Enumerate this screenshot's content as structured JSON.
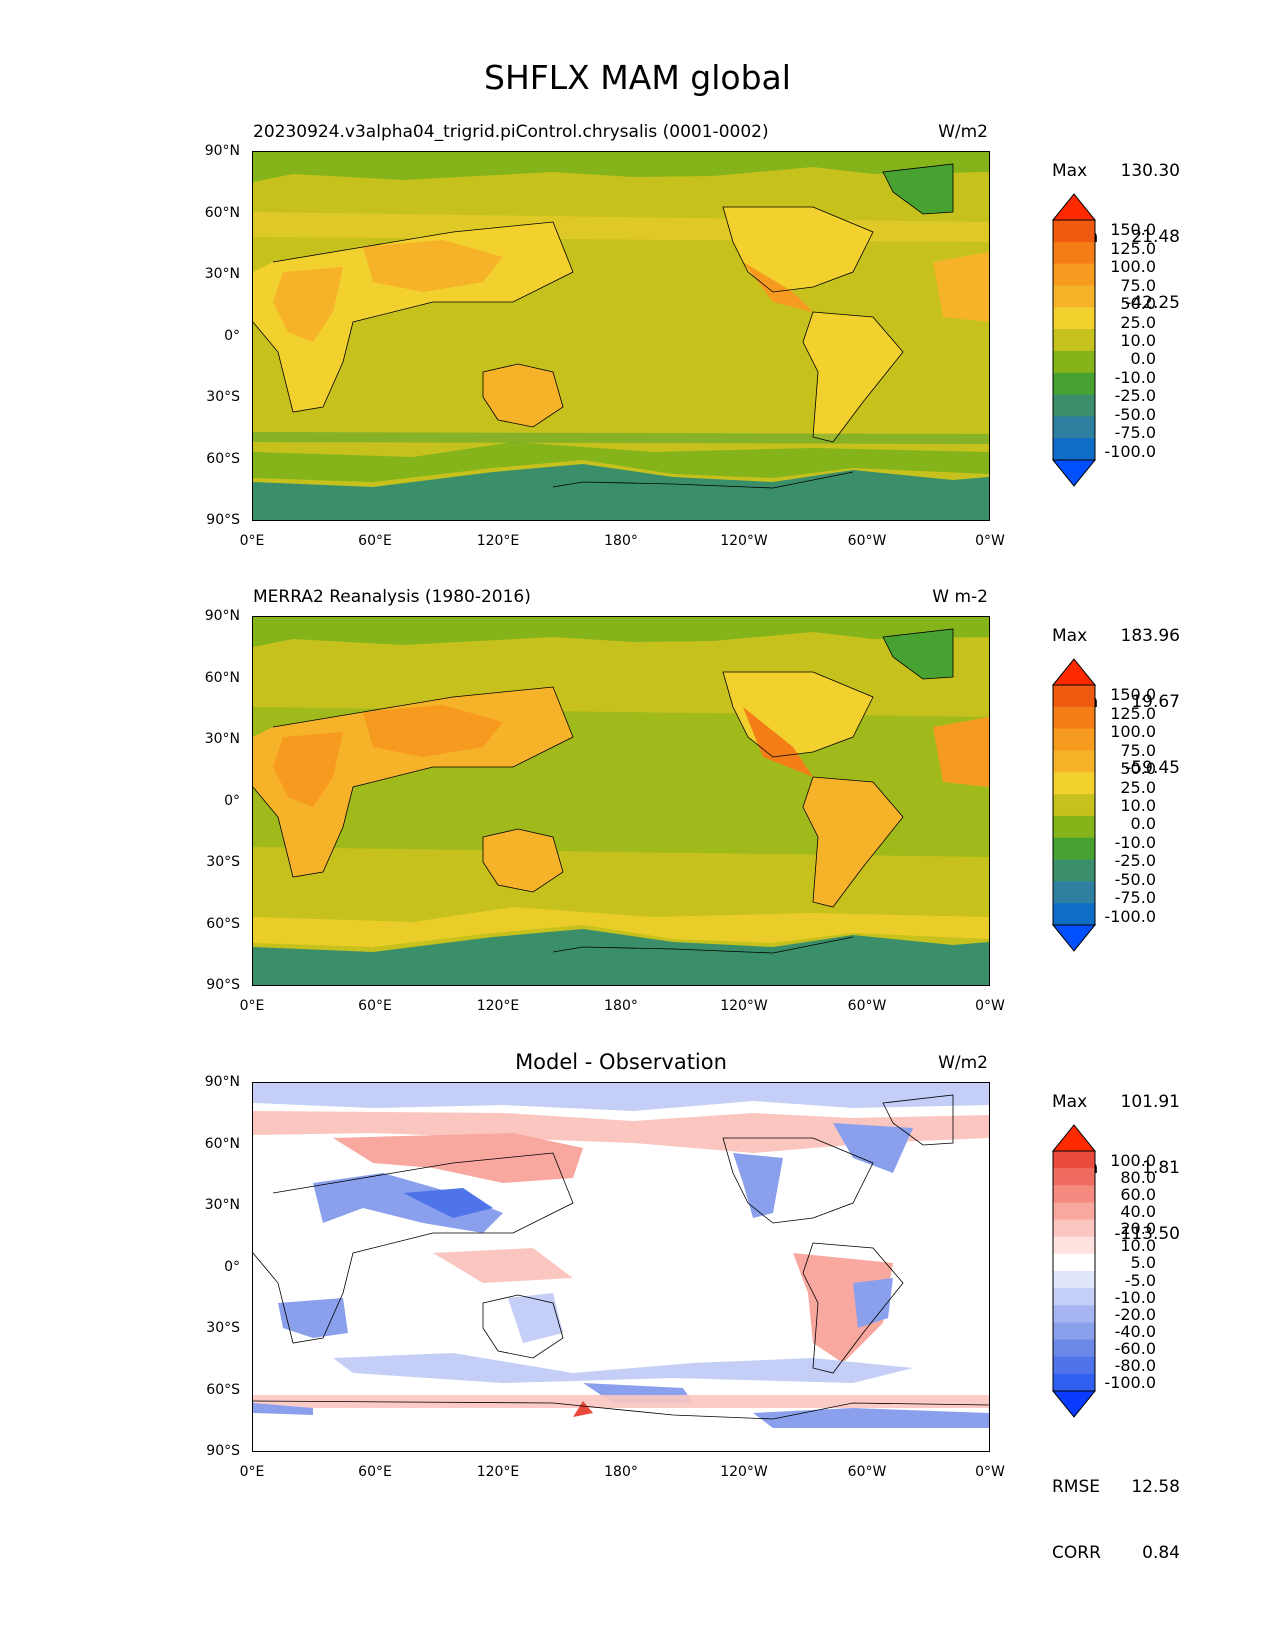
{
  "figure_title": "SHFLX MAM global",
  "colors": {
    "sequential": [
      "#0050ff",
      "#0f6cc7",
      "#2e7fa0",
      "#3a8f6a",
      "#48a232",
      "#84b41a",
      "#c6c11d",
      "#f2d02d",
      "#f6b32a",
      "#f79a20",
      "#f57d18",
      "#f05a10",
      "#ff2a00"
    ],
    "diverging": [
      "#0a3cff",
      "#3060f0",
      "#4f74ea",
      "#6a88e6",
      "#8aa0ec",
      "#a6b6f2",
      "#c4cef6",
      "#e0e6fb",
      "#ffffff",
      "#fde2e0",
      "#fbc6c0",
      "#f8a89f",
      "#f58a80",
      "#f06c60",
      "#e94a3c",
      "#ff2a00"
    ]
  },
  "panels": [
    {
      "id": "model",
      "title": "20230924.v3alpha04_trigrid.piControl.chrysalis (0001-0002)",
      "units": "W/m2",
      "stats": [
        {
          "label": "Max",
          "value": "130.30"
        },
        {
          "label": "Mean",
          "value": "21.48"
        },
        {
          "label": "Min",
          "value": "-42.25"
        }
      ],
      "colorbar": {
        "levels": [
          "150.0",
          "125.0",
          "100.0",
          "75.0",
          "50.0",
          "25.0",
          "10.0",
          "0.0",
          "-10.0",
          "-25.0",
          "-50.0",
          "-75.0",
          "-100.0"
        ]
      }
    },
    {
      "id": "obs",
      "title": "MERRA2 Reanalysis (1980-2016)",
      "units": "W m-2",
      "stats": [
        {
          "label": "Max",
          "value": "183.96"
        },
        {
          "label": "Mean",
          "value": "19.67"
        },
        {
          "label": "Min",
          "value": "-59.45"
        }
      ],
      "colorbar": {
        "levels": [
          "150.0",
          "125.0",
          "100.0",
          "75.0",
          "50.0",
          "25.0",
          "10.0",
          "0.0",
          "-10.0",
          "-25.0",
          "-50.0",
          "-75.0",
          "-100.0"
        ]
      }
    },
    {
      "id": "diff",
      "title": "Model - Observation",
      "units": "W/m2",
      "stats": [
        {
          "label": "Max",
          "value": "101.91"
        },
        {
          "label": "Mean",
          "value": "1.81"
        },
        {
          "label": "Min",
          "value": "-113.50"
        }
      ],
      "colorbar": {
        "levels": [
          "100.0",
          "80.0",
          "60.0",
          "40.0",
          "20.0",
          "10.0",
          "5.0",
          "-5.0",
          "-10.0",
          "-20.0",
          "-40.0",
          "-60.0",
          "-80.0",
          "-100.0"
        ]
      },
      "metrics": [
        {
          "label": "RMSE",
          "value": "12.58"
        },
        {
          "label": "CORR",
          "value": "0.84"
        }
      ]
    }
  ],
  "axes": {
    "lat_ticks": [
      "90°N",
      "60°N",
      "30°N",
      "0°",
      "30°S",
      "60°S",
      "90°S"
    ],
    "lon_ticks": [
      "0°E",
      "60°E",
      "120°E",
      "180°",
      "120°W",
      "60°W",
      "0°W"
    ]
  }
}
